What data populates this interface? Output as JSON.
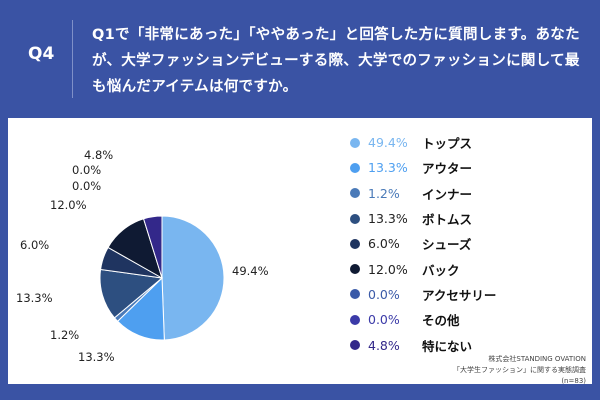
{
  "header": {
    "q": "Q4",
    "question": "Q1で「非常にあった」「ややあった」と回答した方に質問します。あなたが、大学ファッションデビューする際、大学でのファッションに関して最も悩んだアイテムは何ですか。"
  },
  "chart_data": {
    "type": "pie",
    "start": "top",
    "direction": "clockwise",
    "slices": [
      {
        "label": "トップス",
        "value": 49.4,
        "text": "49.4%",
        "color": "#79b6f0"
      },
      {
        "label": "アウター",
        "value": 13.3,
        "text": "13.3%",
        "color": "#4e9ff0"
      },
      {
        "label": "インナー",
        "value": 1.2,
        "text": "1.2%",
        "color": "#4a7ab8"
      },
      {
        "label": "ボトムス",
        "value": 13.3,
        "text": "13.3%",
        "color": "#2d4f80"
      },
      {
        "label": "シューズ",
        "value": 6.0,
        "text": "6.0%",
        "color": "#1f3460"
      },
      {
        "label": "バック",
        "value": 12.0,
        "text": "12.0%",
        "color": "#0f1a33"
      },
      {
        "label": "アクセサリー",
        "value": 0.0,
        "text": "0.0%",
        "color": "#3a5aa8"
      },
      {
        "label": "その他",
        "value": 0.0,
        "text": "0.0%",
        "color": "#3b3aa8"
      },
      {
        "label": "特にない",
        "value": 4.8,
        "text": "4.8%",
        "color": "#33288a"
      }
    ]
  },
  "source": {
    "line1": "株式会社STANDING OVATION",
    "line2": "「大学生ファッション」に関する実態調査",
    "line3": "(n=83)"
  }
}
